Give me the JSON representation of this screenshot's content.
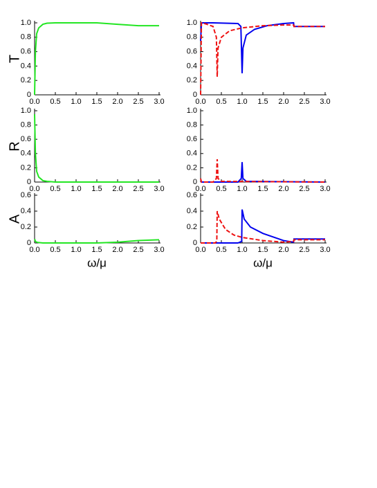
{
  "chart_data": [
    {
      "type": "line",
      "ylabel": "T",
      "xlim": [
        0,
        3
      ],
      "ylim": [
        0,
        1
      ],
      "xticks": [
        {
          "value": 0,
          "label": "0.0"
        },
        {
          "value": 0.5,
          "label": "0.5"
        },
        {
          "value": 1,
          "label": "1.0"
        },
        {
          "value": 1.5,
          "label": "1.5"
        },
        {
          "value": 2,
          "label": "2.0"
        },
        {
          "value": 2.5,
          "label": "2.5"
        },
        {
          "value": 3,
          "label": "3.0"
        }
      ],
      "yticks": [
        0,
        0.2,
        0.4,
        0.6,
        0.8,
        {
          "value": 1,
          "label": "1.0"
        }
      ],
      "series": [
        {
          "color": "#22e622",
          "dashed": false,
          "x": [
            0,
            0.02,
            0.05,
            0.1,
            0.2,
            0.3,
            0.5,
            1.0,
            1.5,
            2.0,
            2.5,
            3.0
          ],
          "values": [
            0,
            0.6,
            0.85,
            0.93,
            0.98,
            0.995,
            1.0,
            1.0,
            1.0,
            0.98,
            0.96,
            0.96
          ]
        }
      ]
    },
    {
      "type": "line",
      "xlim": [
        0,
        3
      ],
      "ylim": [
        0,
        1
      ],
      "xticks": [
        {
          "value": 0,
          "label": "0.0"
        },
        {
          "value": 0.5,
          "label": "0.5"
        },
        {
          "value": 1,
          "label": "1.0"
        },
        {
          "value": 1.5,
          "label": "1.5"
        },
        {
          "value": 2,
          "label": "2.0"
        },
        {
          "value": 2.5,
          "label": "2.5"
        },
        {
          "value": 3,
          "label": "3.0"
        }
      ],
      "yticks": [
        0,
        0.2,
        0.4,
        0.6,
        0.8,
        {
          "value": 1,
          "label": "1.0"
        }
      ],
      "series": [
        {
          "color": "#0000ee",
          "dashed": false,
          "x": [
            0,
            0.02,
            0.3,
            0.9,
            0.97,
            1.0,
            1.02,
            1.1,
            1.3,
            1.6,
            2.0,
            2.24,
            2.25,
            2.5,
            3.0
          ],
          "values": [
            0.75,
            1.0,
            1.0,
            0.99,
            0.95,
            0.3,
            0.65,
            0.83,
            0.91,
            0.96,
            0.99,
            1.0,
            0.95,
            0.95,
            0.95
          ]
        },
        {
          "color": "#ee1111",
          "dashed": true,
          "x": [
            0,
            0.02,
            0.1,
            0.3,
            0.38,
            0.4,
            0.42,
            0.5,
            0.7,
            1.0,
            1.5,
            2.0,
            2.24,
            2.25,
            3.0
          ],
          "values": [
            0,
            1.0,
            0.99,
            0.95,
            0.8,
            0.25,
            0.65,
            0.8,
            0.89,
            0.93,
            0.96,
            0.97,
            0.97,
            0.95,
            0.95
          ]
        }
      ]
    },
    {
      "type": "line",
      "ylabel": "R",
      "xlim": [
        0,
        3
      ],
      "ylim": [
        0,
        1
      ],
      "xticks": [
        {
          "value": 0,
          "label": "0.0"
        },
        {
          "value": 0.5,
          "label": "0.5"
        },
        {
          "value": 1,
          "label": "1.0"
        },
        {
          "value": 1.5,
          "label": "1.5"
        },
        {
          "value": 2,
          "label": "2.0"
        },
        {
          "value": 2.5,
          "label": "2.5"
        },
        {
          "value": 3,
          "label": "3.0"
        }
      ],
      "yticks": [
        0,
        0.2,
        0.4,
        0.6,
        0.8,
        {
          "value": 1,
          "label": "1.0"
        }
      ],
      "series": [
        {
          "color": "#22e622",
          "dashed": false,
          "x": [
            0,
            0.02,
            0.05,
            0.1,
            0.2,
            0.3,
            0.5,
            1.0,
            1.5,
            2.0,
            2.5,
            3.0
          ],
          "values": [
            0.95,
            0.4,
            0.15,
            0.07,
            0.02,
            0.01,
            0,
            0,
            0,
            0,
            0,
            0
          ]
        }
      ]
    },
    {
      "type": "line",
      "xlim": [
        0,
        3
      ],
      "ylim": [
        0,
        1
      ],
      "xticks": [
        {
          "value": 0,
          "label": "0.0"
        },
        {
          "value": 0.5,
          "label": "0.5"
        },
        {
          "value": 1,
          "label": "1.0"
        },
        {
          "value": 1.5,
          "label": "1.5"
        },
        {
          "value": 2,
          "label": "2.0"
        },
        {
          "value": 2.5,
          "label": "2.5"
        },
        {
          "value": 3,
          "label": "3.0"
        }
      ],
      "yticks": [
        0,
        0.2,
        0.4,
        0.6,
        0.8,
        {
          "value": 1,
          "label": "1.0"
        }
      ],
      "series": [
        {
          "color": "#0000ee",
          "dashed": false,
          "x": [
            0,
            0.9,
            0.98,
            1.0,
            1.02,
            1.1,
            3.0
          ],
          "values": [
            0,
            0,
            0.05,
            0.28,
            0.05,
            0.01,
            0
          ]
        },
        {
          "color": "#ee1111",
          "dashed": true,
          "x": [
            0,
            0.02,
            0.3,
            0.38,
            0.4,
            0.42,
            0.5,
            3.0
          ],
          "values": [
            0.05,
            0,
            0,
            0.05,
            0.32,
            0.05,
            0.01,
            0
          ]
        }
      ]
    },
    {
      "type": "line",
      "ylabel": "A",
      "xlabel": "ω/μ",
      "xlim": [
        0,
        3
      ],
      "ylim": [
        0,
        0.6
      ],
      "xticks": [
        {
          "value": 0,
          "label": "0.0"
        },
        {
          "value": 0.5,
          "label": "0.5"
        },
        {
          "value": 1,
          "label": "1.0"
        },
        {
          "value": 1.5,
          "label": "1.5"
        },
        {
          "value": 2,
          "label": "2.0"
        },
        {
          "value": 2.5,
          "label": "2.5"
        },
        {
          "value": 3,
          "label": "3.0"
        }
      ],
      "yticks": [
        0,
        0.2,
        0.4,
        0.6
      ],
      "series": [
        {
          "color": "#22e622",
          "dashed": false,
          "x": [
            0,
            0.02,
            0.05,
            0.1,
            0.2,
            0.5,
            1.0,
            1.5,
            2.0,
            2.5,
            3.0
          ],
          "values": [
            0.05,
            0.02,
            0.01,
            0.005,
            0,
            0,
            0,
            0,
            0.01,
            0.03,
            0.04
          ]
        }
      ]
    },
    {
      "type": "line",
      "xlabel": "ω/μ",
      "xlim": [
        0,
        3
      ],
      "ylim": [
        0,
        0.6
      ],
      "xticks": [
        {
          "value": 0,
          "label": "0.0"
        },
        {
          "value": 0.5,
          "label": "0.5"
        },
        {
          "value": 1,
          "label": "1.0"
        },
        {
          "value": 1.5,
          "label": "1.5"
        },
        {
          "value": 2,
          "label": "2.0"
        },
        {
          "value": 2.5,
          "label": "2.5"
        },
        {
          "value": 3,
          "label": "3.0"
        }
      ],
      "yticks": [
        0,
        0.2,
        0.4,
        0.6
      ],
      "series": [
        {
          "color": "#0000ee",
          "dashed": false,
          "x": [
            0,
            0.9,
            0.99,
            1.0,
            1.05,
            1.2,
            1.5,
            2.0,
            2.24,
            2.25,
            3.0
          ],
          "values": [
            0,
            0,
            0.02,
            0.42,
            0.3,
            0.2,
            0.12,
            0.03,
            0.01,
            0.05,
            0.05
          ]
        },
        {
          "color": "#ee1111",
          "dashed": true,
          "x": [
            0,
            0.35,
            0.39,
            0.4,
            0.45,
            0.6,
            0.8,
            1.0,
            1.5,
            2.0,
            2.24,
            2.25,
            3.0
          ],
          "values": [
            0,
            0,
            0.02,
            0.4,
            0.3,
            0.17,
            0.1,
            0.07,
            0.03,
            0.01,
            0.02,
            0.04,
            0.04
          ]
        }
      ]
    }
  ]
}
